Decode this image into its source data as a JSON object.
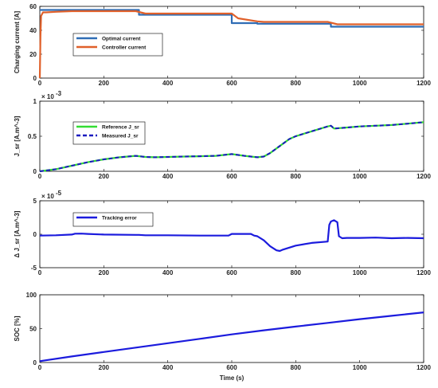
{
  "chart_data": [
    {
      "type": "line",
      "ylabel": "Charging current [A]",
      "xlim": [
        0,
        1200
      ],
      "ylim": [
        0,
        60
      ],
      "xticks": [
        0,
        200,
        400,
        600,
        800,
        1000,
        1200
      ],
      "yticks": [
        0,
        20,
        40,
        60
      ],
      "grid": false,
      "legend": "top-left",
      "series": [
        {
          "name": "Optimal current",
          "color": "#2f6db5",
          "style": "solid",
          "x": [
            0,
            310,
            310,
            600,
            600,
            680,
            680,
            910,
            910,
            1200
          ],
          "y": [
            57,
            57,
            53,
            53,
            46,
            46,
            45.5,
            45.5,
            43,
            43
          ]
        },
        {
          "name": "Controller current",
          "color": "#e0602a",
          "style": "solid",
          "x": [
            0,
            2,
            4,
            10,
            20,
            50,
            100,
            300,
            330,
            600,
            620,
            680,
            700,
            900,
            930,
            1200
          ],
          "y": [
            0,
            35,
            52,
            55,
            55,
            55.5,
            56,
            56,
            54,
            54,
            50,
            47.5,
            47,
            47,
            45,
            45
          ]
        }
      ]
    },
    {
      "type": "line",
      "ylabel": "J_sr [A.m^-3]",
      "exponent_label": "× 10",
      "exponent_power": "-3",
      "xlim": [
        0,
        1200
      ],
      "ylim": [
        0,
        0.001
      ],
      "xticks": [
        0,
        200,
        400,
        600,
        800,
        1000,
        1200
      ],
      "yticks": [
        0,
        0.5,
        1
      ],
      "ytick_labels": [
        "0",
        "0.5",
        "1"
      ],
      "legend": "top-left",
      "series": [
        {
          "name": "Reference J_sr",
          "color": "#33dd33",
          "style": "solid",
          "x": [
            0,
            50,
            100,
            150,
            200,
            250,
            300,
            330,
            360,
            400,
            450,
            500,
            550,
            600,
            640,
            680,
            700,
            720,
            750,
            780,
            800,
            850,
            900,
            910,
            920,
            950,
            1000,
            1050,
            1100,
            1150,
            1200
          ],
          "y": [
            0,
            3e-05,
            8e-05,
            0.00013,
            0.00017,
            0.0002,
            0.00022,
            0.000205,
            0.0002,
            0.000205,
            0.00021,
            0.000215,
            0.00022,
            0.000245,
            0.00022,
            0.0002,
            0.00021,
            0.00026,
            0.00036,
            0.00046,
            0.0005,
            0.00057,
            0.00064,
            0.00065,
            0.00061,
            0.00062,
            0.00064,
            0.00065,
            0.00066,
            0.00068,
            0.0007
          ]
        },
        {
          "name": "Measured J_sr",
          "color": "#1b1bbf",
          "style": "dashed",
          "x": [
            0,
            50,
            100,
            150,
            200,
            250,
            300,
            330,
            360,
            400,
            450,
            500,
            550,
            600,
            640,
            680,
            700,
            720,
            750,
            780,
            800,
            850,
            900,
            910,
            920,
            950,
            1000,
            1050,
            1100,
            1150,
            1200
          ],
          "y": [
            0,
            3e-05,
            8e-05,
            0.00013,
            0.00017,
            0.0002,
            0.00022,
            0.000205,
            0.0002,
            0.000205,
            0.00021,
            0.000215,
            0.00022,
            0.000245,
            0.00022,
            0.0002,
            0.00021,
            0.00026,
            0.00036,
            0.00046,
            0.0005,
            0.00057,
            0.00064,
            0.00065,
            0.00061,
            0.00062,
            0.00064,
            0.00065,
            0.00066,
            0.00068,
            0.0007
          ]
        }
      ]
    },
    {
      "type": "line",
      "ylabel": "Δ J_sr [A.m^-3]",
      "exponent_label": "× 10",
      "exponent_power": "-5",
      "xlim": [
        0,
        1200
      ],
      "ylim": [
        -5e-05,
        5e-05
      ],
      "xticks": [
        0,
        200,
        400,
        600,
        800,
        1000,
        1200
      ],
      "yticks": [
        -5,
        0,
        5
      ],
      "ytick_labels": [
        "-5",
        "0",
        "5"
      ],
      "legend": "top-left",
      "series": [
        {
          "name": "Tracking error",
          "color": "#1b1bdd",
          "style": "solid",
          "x": [
            0,
            50,
            100,
            110,
            130,
            150,
            200,
            300,
            310,
            330,
            400,
            500,
            590,
            600,
            660,
            670,
            680,
            700,
            720,
            740,
            750,
            760,
            780,
            800,
            850,
            900,
            905,
            910,
            920,
            930,
            935,
            945,
            960,
            1000,
            1050,
            1100,
            1150,
            1200
          ],
          "y": [
            -2e-06,
            -1.5e-06,
            -5e-07,
            8e-07,
            1e-06,
            5e-07,
            -5e-07,
            -1e-06,
            -1e-06,
            -1.5e-06,
            -1.5e-06,
            -2e-06,
            -2e-06,
            5e-07,
            5e-07,
            -2e-06,
            -3e-06,
            -9e-06,
            -1.8e-05,
            -2.4e-05,
            -2.5e-05,
            -2.3e-05,
            -2e-05,
            -1.7e-05,
            -1.3e-05,
            -1.1e-05,
            1.4e-05,
            1.9e-05,
            2.1e-05,
            1.8e-05,
            -3e-06,
            -6e-06,
            -5.5e-06,
            -5.5e-06,
            -5e-06,
            -6e-06,
            -5.5e-06,
            -6e-06
          ]
        }
      ]
    },
    {
      "type": "line",
      "ylabel": "SOC [%]",
      "xlabel": "Time (s)",
      "xlim": [
        0,
        1200
      ],
      "ylim": [
        0,
        100
      ],
      "xticks": [
        0,
        200,
        400,
        600,
        800,
        1000,
        1200
      ],
      "yticks": [
        0,
        50,
        100
      ],
      "series": [
        {
          "color": "#1b1bdd",
          "style": "solid",
          "x": [
            0,
            100,
            200,
            300,
            400,
            500,
            600,
            700,
            800,
            900,
            1000,
            1100,
            1200
          ],
          "y": [
            2,
            9,
            15.5,
            22,
            28.5,
            35,
            41.5,
            47.5,
            53,
            58.5,
            64,
            69,
            74
          ]
        }
      ]
    }
  ]
}
